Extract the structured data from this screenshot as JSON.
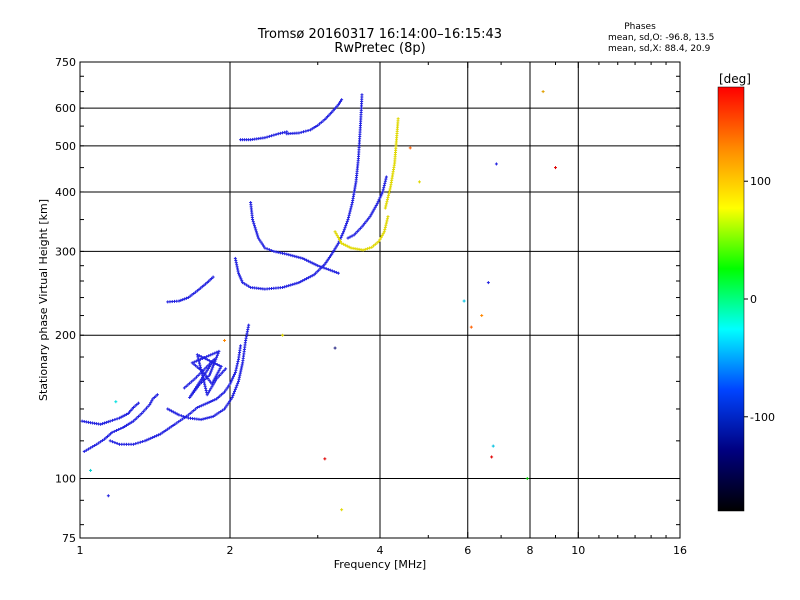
{
  "header": {
    "title": "Tromsø 20160317 16:14:00–16:15:43",
    "subtitle": "RwPretec (8p)"
  },
  "stats": {
    "label": "Phases",
    "line1": "mean, sd,O: -96.8, 13.5",
    "line2": "mean, sd,X:  88.4, 20.9"
  },
  "colorbar": {
    "unit_label": "[deg]",
    "ticks": [
      {
        "value": 100,
        "label": "100"
      },
      {
        "value": 0,
        "label": "0"
      },
      {
        "value": -100,
        "label": "-100"
      }
    ],
    "range": [
      -180,
      180
    ],
    "stops": [
      "#ff0000",
      "#ff8800",
      "#ffff00",
      "#00ff00",
      "#00ffff",
      "#0044ff",
      "#000080",
      "#000000"
    ]
  },
  "chart_data": {
    "type": "scatter",
    "title": "Tromsø 20160317 16:14:00–16:15:43",
    "subtitle": "RwPretec (8p)",
    "xlabel": "Frequency [MHz]",
    "ylabel": "Stationary phase Virtual Height [km]",
    "x_scale": "log",
    "y_scale": "log",
    "xlim": [
      1,
      16
    ],
    "ylim": [
      75,
      750
    ],
    "x_ticks": [
      {
        "value": 1,
        "label": "1"
      },
      {
        "value": 2,
        "label": "2"
      },
      {
        "value": 4,
        "label": "4"
      },
      {
        "value": 6,
        "label": "6"
      },
      {
        "value": 8,
        "label": "8"
      },
      {
        "value": 10,
        "label": "10"
      },
      {
        "value": 16,
        "label": "16"
      }
    ],
    "y_ticks": [
      {
        "value": 75,
        "label": "75"
      },
      {
        "value": 100,
        "label": "100"
      },
      {
        "value": 200,
        "label": "200"
      },
      {
        "value": 300,
        "label": "300"
      },
      {
        "value": 400,
        "label": "400"
      },
      {
        "value": 500,
        "label": "500"
      },
      {
        "value": 600,
        "label": "600"
      },
      {
        "value": 750,
        "label": "750"
      }
    ],
    "x_grid": [
      2,
      4,
      6,
      8,
      10
    ],
    "y_grid": [
      100,
      200,
      300,
      400,
      500,
      600
    ],
    "series": [
      {
        "color": "#2020e0",
        "points": [
          [
            1.02,
            114
          ],
          [
            1.05,
            116
          ],
          [
            1.08,
            118
          ],
          [
            1.12,
            121
          ],
          [
            1.16,
            125
          ],
          [
            1.22,
            128
          ],
          [
            1.28,
            132
          ],
          [
            1.33,
            137
          ],
          [
            1.38,
            143
          ],
          [
            1.4,
            147
          ],
          [
            1.43,
            150
          ]
        ]
      },
      {
        "color": "#2020e0",
        "points": [
          [
            1.01,
            132
          ],
          [
            1.05,
            131
          ],
          [
            1.1,
            130
          ],
          [
            1.15,
            132
          ],
          [
            1.2,
            134
          ],
          [
            1.25,
            137
          ],
          [
            1.28,
            141
          ],
          [
            1.31,
            144
          ]
        ]
      },
      {
        "color": "#2020e0",
        "points": [
          [
            1.15,
            120
          ],
          [
            1.2,
            118
          ],
          [
            1.28,
            118
          ],
          [
            1.35,
            120
          ],
          [
            1.45,
            124
          ],
          [
            1.55,
            130
          ],
          [
            1.65,
            136
          ],
          [
            1.72,
            141
          ],
          [
            1.8,
            144
          ],
          [
            1.88,
            147
          ],
          [
            1.95,
            152
          ],
          [
            2.0,
            158
          ],
          [
            2.05,
            167
          ],
          [
            2.08,
            178
          ],
          [
            2.1,
            190
          ]
        ]
      },
      {
        "color": "#2020e0",
        "points": [
          [
            1.5,
            140
          ],
          [
            1.58,
            136
          ],
          [
            1.65,
            134
          ],
          [
            1.75,
            133
          ],
          [
            1.85,
            135
          ],
          [
            1.95,
            140
          ],
          [
            2.02,
            148
          ],
          [
            2.08,
            160
          ],
          [
            2.12,
            175
          ],
          [
            2.15,
            195
          ],
          [
            2.18,
            210
          ]
        ]
      },
      {
        "color": "#2020e0",
        "points": [
          [
            1.5,
            235
          ],
          [
            1.58,
            236
          ],
          [
            1.65,
            240
          ],
          [
            1.72,
            248
          ],
          [
            1.8,
            258
          ],
          [
            1.85,
            265
          ]
        ]
      },
      {
        "color": "#2020e0",
        "points": [
          [
            2.05,
            290
          ],
          [
            2.08,
            270
          ],
          [
            2.12,
            258
          ],
          [
            2.2,
            252
          ],
          [
            2.35,
            250
          ],
          [
            2.55,
            252
          ],
          [
            2.75,
            258
          ],
          [
            2.95,
            268
          ],
          [
            3.1,
            282
          ],
          [
            3.2,
            296
          ],
          [
            3.3,
            312
          ],
          [
            3.38,
            330
          ],
          [
            3.45,
            350
          ],
          [
            3.52,
            380
          ],
          [
            3.58,
            420
          ],
          [
            3.62,
            470
          ],
          [
            3.65,
            540
          ],
          [
            3.67,
            600
          ],
          [
            3.68,
            640
          ]
        ]
      },
      {
        "color": "#2020e0",
        "points": [
          [
            2.2,
            380
          ],
          [
            2.22,
            350
          ],
          [
            2.28,
            320
          ],
          [
            2.35,
            305
          ],
          [
            2.45,
            300
          ],
          [
            2.6,
            296
          ],
          [
            2.8,
            290
          ],
          [
            3.0,
            280
          ],
          [
            3.15,
            275
          ],
          [
            3.3,
            270
          ]
        ]
      },
      {
        "color": "#2020e0",
        "points": [
          [
            2.1,
            515
          ],
          [
            2.2,
            515
          ],
          [
            2.35,
            520
          ],
          [
            2.5,
            530
          ],
          [
            2.6,
            535
          ]
        ]
      },
      {
        "color": "#2020e0",
        "points": [
          [
            2.6,
            530
          ],
          [
            2.75,
            532
          ],
          [
            2.9,
            540
          ],
          [
            3.0,
            552
          ],
          [
            3.1,
            568
          ],
          [
            3.2,
            588
          ],
          [
            3.3,
            610
          ],
          [
            3.35,
            625
          ]
        ]
      },
      {
        "color": "#2020e0",
        "points": [
          [
            3.45,
            320
          ],
          [
            3.55,
            325
          ],
          [
            3.68,
            338
          ],
          [
            3.82,
            355
          ],
          [
            3.95,
            378
          ],
          [
            4.05,
            400
          ],
          [
            4.12,
            430
          ]
        ]
      },
      {
        "color": "#e0d800",
        "points": [
          [
            3.25,
            330
          ],
          [
            3.35,
            312
          ],
          [
            3.5,
            305
          ],
          [
            3.7,
            302
          ],
          [
            3.85,
            306
          ],
          [
            3.98,
            315
          ],
          [
            4.08,
            330
          ],
          [
            4.15,
            355
          ]
        ]
      },
      {
        "color": "#e0d800",
        "points": [
          [
            4.1,
            370
          ],
          [
            4.2,
            410
          ],
          [
            4.28,
            460
          ],
          [
            4.32,
            520
          ],
          [
            4.35,
            570
          ]
        ]
      },
      {
        "color": "#2020e0",
        "points": [
          [
            1.62,
            155
          ],
          [
            1.7,
            162
          ],
          [
            1.78,
            170
          ],
          [
            1.86,
            178
          ],
          [
            1.66,
            148
          ],
          [
            1.74,
            158
          ],
          [
            1.82,
            165
          ],
          [
            1.9,
            185
          ],
          [
            1.68,
            175
          ],
          [
            1.76,
            168
          ],
          [
            1.84,
            158
          ],
          [
            1.92,
            172
          ],
          [
            1.72,
            182
          ],
          [
            1.8,
            150
          ],
          [
            1.88,
            162
          ],
          [
            1.96,
            170
          ]
        ]
      }
    ],
    "scatter_points": [
      {
        "x": 1.18,
        "y": 145,
        "color": "#00e0e0"
      },
      {
        "x": 1.05,
        "y": 104,
        "color": "#00d0d0"
      },
      {
        "x": 1.14,
        "y": 92,
        "color": "#2020e0"
      },
      {
        "x": 3.1,
        "y": 110,
        "color": "#e00000"
      },
      {
        "x": 3.35,
        "y": 86,
        "color": "#e0d800"
      },
      {
        "x": 3.25,
        "y": 188,
        "color": "#202080"
      },
      {
        "x": 5.9,
        "y": 236,
        "color": "#00c0e0"
      },
      {
        "x": 6.4,
        "y": 220,
        "color": "#ff8800"
      },
      {
        "x": 6.6,
        "y": 258,
        "color": "#2020e0"
      },
      {
        "x": 6.7,
        "y": 111,
        "color": "#e00000"
      },
      {
        "x": 6.75,
        "y": 117,
        "color": "#00c0e0"
      },
      {
        "x": 6.85,
        "y": 458,
        "color": "#2020e0"
      },
      {
        "x": 8.5,
        "y": 650,
        "color": "#e0a000"
      },
      {
        "x": 9.0,
        "y": 450,
        "color": "#e00000"
      },
      {
        "x": 7.9,
        "y": 100,
        "color": "#00c000"
      },
      {
        "x": 6.1,
        "y": 208,
        "color": "#ff6000"
      },
      {
        "x": 4.6,
        "y": 495,
        "color": "#ff6000"
      },
      {
        "x": 4.8,
        "y": 420,
        "color": "#e0d800"
      },
      {
        "x": 2.55,
        "y": 200,
        "color": "#e0d800"
      },
      {
        "x": 1.95,
        "y": 195,
        "color": "#ff8800"
      }
    ]
  }
}
